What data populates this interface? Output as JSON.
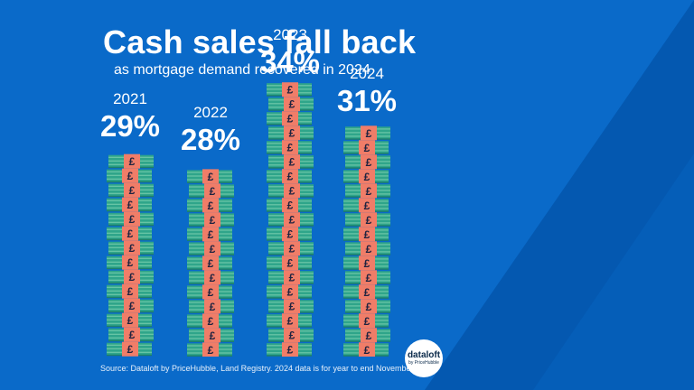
{
  "title": "Cash sales fall back",
  "subtitle": "as mortgage demand recovered in 2024",
  "source_note": "Source: Dataloft by PriceHubble, Land Registry. 2024 data is for year to end November",
  "logo": {
    "name": "dataloft",
    "tagline": "by PriceHubble"
  },
  "colors": {
    "background": "#0a6ac9",
    "background_dark": "#0458b0",
    "note_band": "#2fa58a",
    "note_band_stripe": "#86d6b5",
    "note_band_dark": "#1d7f6a",
    "note_label": "#f07d68",
    "note_symbol": "#1e2340"
  },
  "icon": "pound-banknote-bundle-icon",
  "currency_symbol": "£",
  "chart_data": {
    "type": "bar",
    "categories": [
      "2021",
      "2022",
      "2023",
      "2024"
    ],
    "values": [
      29,
      28,
      34,
      31
    ],
    "labels": [
      "29%",
      "28%",
      "34%",
      "31%"
    ],
    "unit": "%",
    "title": "Cash sales fall back",
    "subtitle": "as mortgage demand recovered in 2024"
  }
}
